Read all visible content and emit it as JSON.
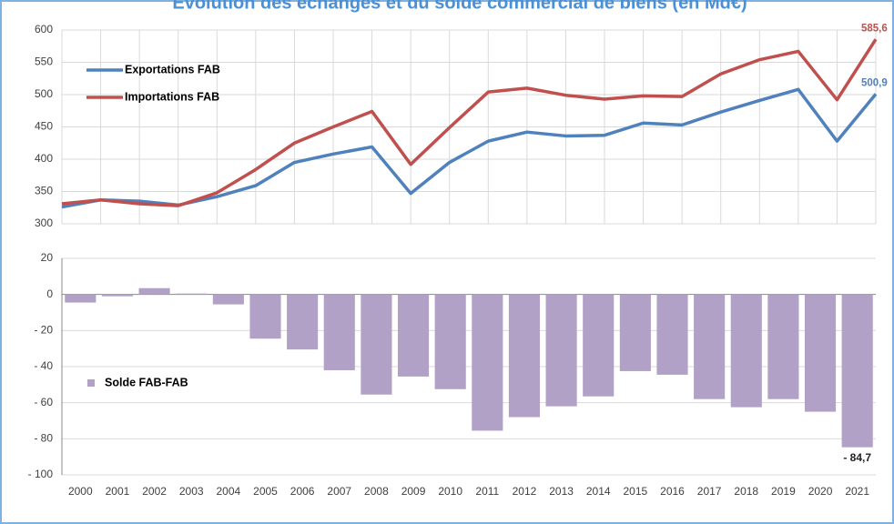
{
  "title": "Évolution des échanges et du solde commercial de biens (en Md€)",
  "categories": [
    "2000",
    "2001",
    "2002",
    "2003",
    "2004",
    "2005",
    "2006",
    "2007",
    "2008",
    "2009",
    "2010",
    "2011",
    "2012",
    "2013",
    "2014",
    "2015",
    "2016",
    "2017",
    "2018",
    "2019",
    "2020",
    "2021"
  ],
  "chart_data": [
    {
      "type": "line",
      "ylim": [
        300,
        600
      ],
      "yticks": [
        300,
        350,
        400,
        450,
        500,
        550,
        600
      ],
      "grid": true,
      "series": [
        {
          "name": "Exportations FAB",
          "color": "#4f81bd",
          "values": [
            326,
            337,
            335,
            329,
            342,
            359,
            395,
            408,
            419,
            347,
            395,
            428,
            442,
            436,
            437,
            456,
            453,
            473,
            491,
            508,
            428,
            500.9
          ],
          "value_labels": [
            null,
            null,
            null,
            null,
            null,
            null,
            null,
            null,
            null,
            null,
            null,
            null,
            null,
            null,
            null,
            null,
            null,
            null,
            null,
            null,
            null,
            "500,9"
          ]
        },
        {
          "name": "Importations FAB",
          "color": "#c0504d",
          "values": [
            331,
            337,
            331,
            328,
            348,
            384,
            425,
            450,
            474,
            392,
            449,
            504,
            510,
            499,
            493,
            498,
            497,
            532,
            554,
            567,
            492,
            585.6
          ],
          "value_labels": [
            null,
            null,
            null,
            null,
            null,
            null,
            null,
            null,
            null,
            null,
            null,
            null,
            null,
            null,
            null,
            null,
            null,
            null,
            null,
            null,
            null,
            "585,6"
          ]
        }
      ]
    },
    {
      "type": "bar",
      "ylim": [
        -100,
        20
      ],
      "grid": true,
      "yticks": [
        {
          "value": -100,
          "label": "- 100"
        },
        {
          "value": -80,
          "label": "- 80"
        },
        {
          "value": -60,
          "label": "- 60"
        },
        {
          "value": -40,
          "label": "- 40"
        },
        {
          "value": -20,
          "label": "- 20"
        },
        0,
        20
      ],
      "series": [
        {
          "name": "Solde FAB-FAB",
          "color": "#b2a1c7",
          "values": [
            -4.5,
            -1,
            3.5,
            0.5,
            -5.5,
            -24.5,
            -30.5,
            -42,
            -55.5,
            -45.5,
            -52.5,
            -75.5,
            -68,
            -62,
            -56.5,
            -42.5,
            -44.5,
            -58,
            -62.5,
            -58,
            -65,
            -84.7
          ],
          "value_labels": [
            null,
            null,
            null,
            null,
            null,
            null,
            null,
            null,
            null,
            null,
            null,
            null,
            null,
            null,
            null,
            null,
            null,
            null,
            null,
            null,
            null,
            "- 84,7"
          ]
        }
      ]
    }
  ]
}
